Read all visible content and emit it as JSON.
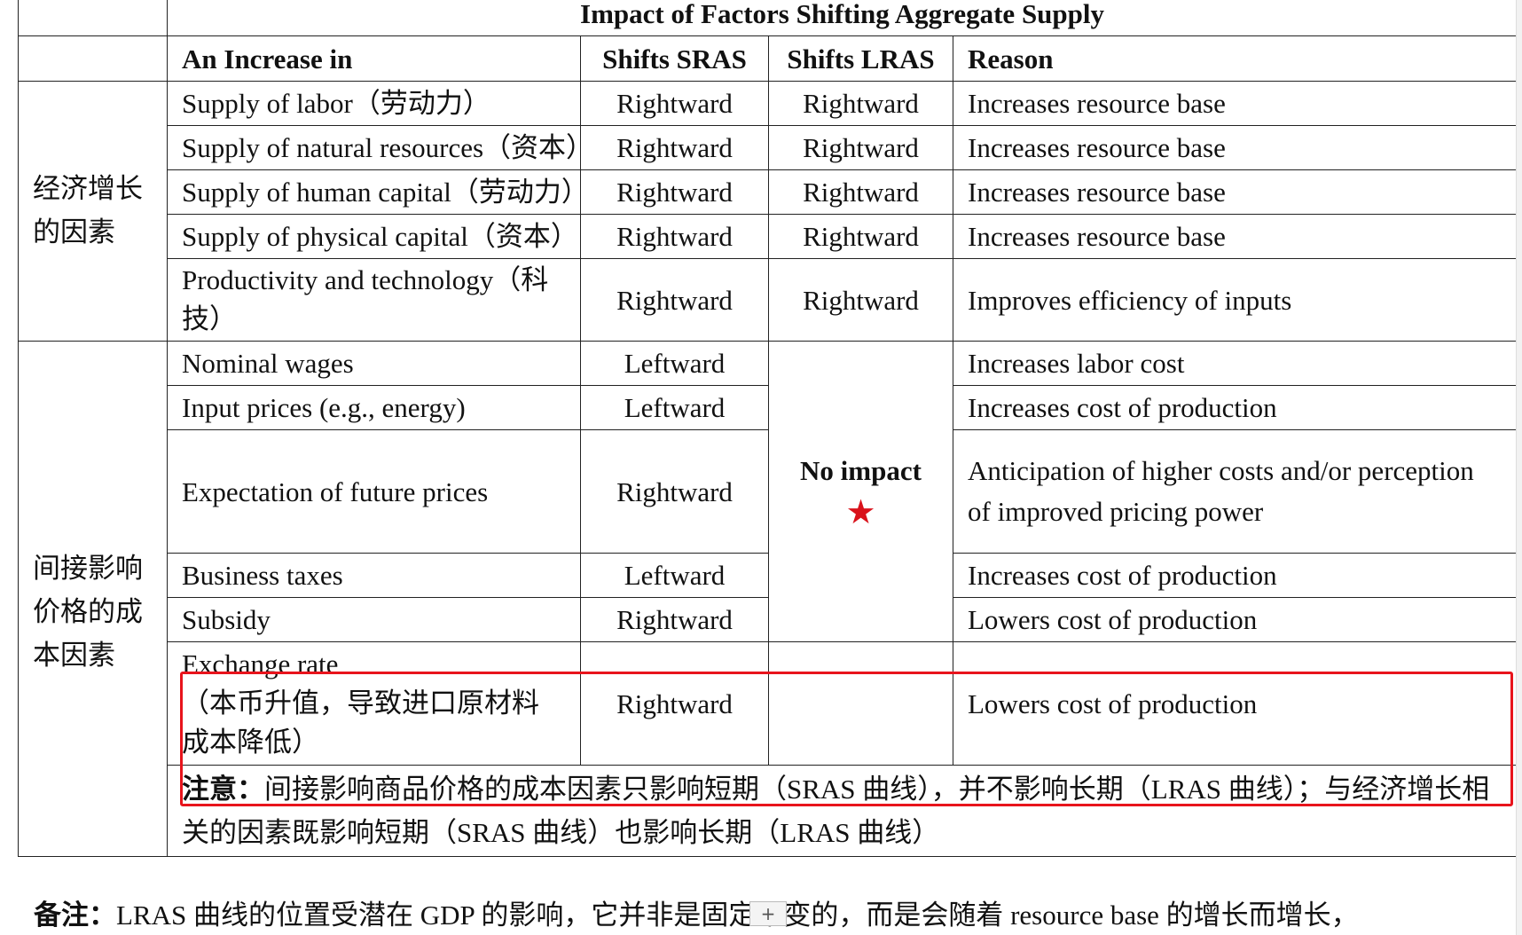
{
  "table": {
    "title": "Impact of Factors Shifting Aggregate Supply",
    "headers": {
      "increase": "An Increase in",
      "sras": "Shifts SRAS",
      "lras": "Shifts LRAS",
      "reason": "Reason"
    },
    "group1": {
      "label": "经济增长的因素",
      "rows": [
        {
          "factor": "Supply of labor（劳动力）",
          "sras": "Rightward",
          "lras": "Rightward",
          "reason": "Increases resource base"
        },
        {
          "factor": "Supply of natural resources（资本）",
          "sras": "Rightward",
          "lras": "Rightward",
          "reason": "Increases resource base"
        },
        {
          "factor": "Supply of human capital（劳动力）",
          "sras": "Rightward",
          "lras": "Rightward",
          "reason": "Increases resource base"
        },
        {
          "factor": "Supply of physical capital（资本）",
          "sras": "Rightward",
          "lras": "Rightward",
          "reason": "Increases resource base"
        },
        {
          "factor": "Productivity and technology（科技）",
          "sras": "Rightward",
          "lras": "Rightward",
          "reason": "Improves efficiency of inputs"
        }
      ]
    },
    "group2": {
      "label": "间接影响价格的成本因素",
      "lras_merged": "No impact",
      "star": "★",
      "rows": [
        {
          "factor": "Nominal wages",
          "sras": "Leftward",
          "reason": "Increases labor cost"
        },
        {
          "factor": "Input prices (e.g., energy)",
          "sras": "Leftward",
          "reason": "Increases cost of production"
        },
        {
          "factor": "Expectation of future prices",
          "sras": "Rightward",
          "reason": "Anticipation of higher costs and/or perception of improved pricing power"
        },
        {
          "factor": "Business taxes",
          "sras": "Leftward",
          "reason": "Increases cost of production"
        },
        {
          "factor": "Subsidy",
          "sras": "Rightward",
          "reason": "Lowers cost of production"
        },
        {
          "factor": "Exchange rate",
          "factor_note": "（本币升值，导致进口原材料成本降低）",
          "sras": "Rightward",
          "reason": "Lowers cost of production"
        }
      ]
    },
    "note": {
      "label": "注意：",
      "text": "间接影响商品价格的成本因素只影响短期（SRAS 曲线），并不影响长期（LRAS 曲线）；与经济增长相关的因素既影响短期（SRAS 曲线）也影响长期（LRAS 曲线）"
    }
  },
  "footer": {
    "label": "备注：",
    "text": "LRAS 曲线的位置受潜在 GDP 的影响，它并非是固定不变的，而是会随着 resource base 的增长而增长，"
  },
  "plus_button": "+",
  "colors": {
    "highlight_border": "#e8141c",
    "star": "#d9121b"
  }
}
